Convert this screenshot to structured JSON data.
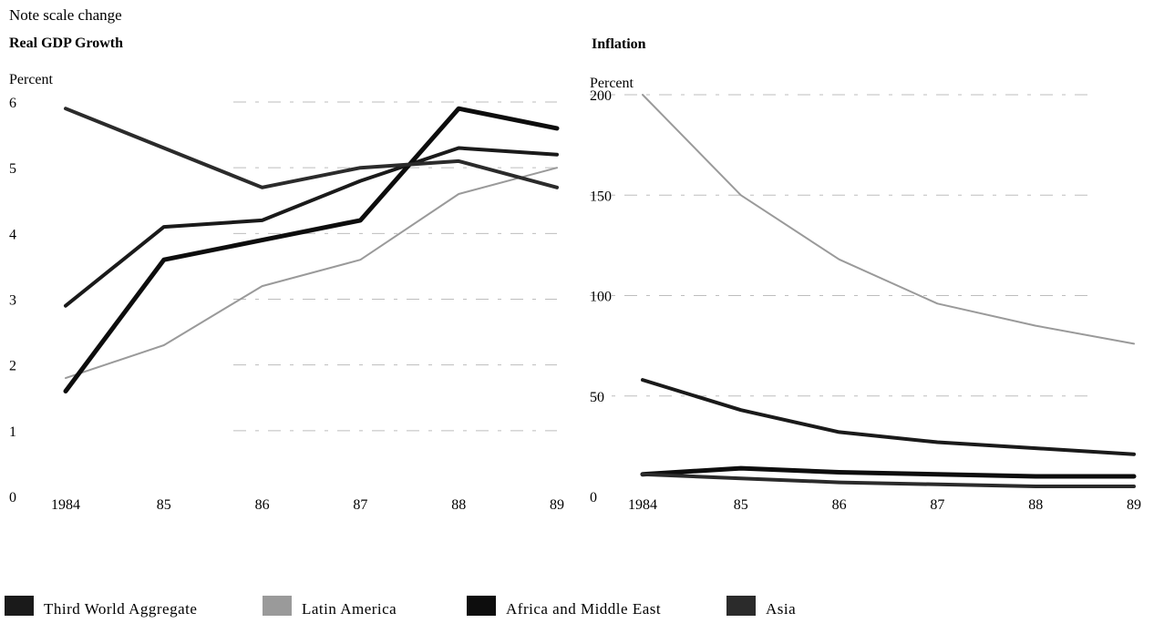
{
  "note": "Note scale change",
  "colors": {
    "Third World Aggregate": "#1a1a1a",
    "Latin America": "#9a9a9a",
    "Africa and Middle East": "#0d0d0d",
    "Asia": "#2b2b2b"
  },
  "legend": [
    "Third World Aggregate",
    "Latin America",
    "Africa and Middle East",
    "Asia"
  ],
  "chart_data": [
    {
      "type": "line",
      "title": "Real GDP Growth",
      "ylabel": "Percent",
      "categories": [
        "1984",
        "85",
        "86",
        "87",
        "88",
        "89"
      ],
      "ylim": [
        0,
        6
      ],
      "yticks": [
        "0",
        "1",
        "2",
        "3",
        "4",
        "5",
        "6"
      ],
      "series": [
        {
          "name": "Third World Aggregate",
          "values": [
            2.9,
            4.1,
            4.2,
            4.8,
            5.3,
            5.2
          ]
        },
        {
          "name": "Latin America",
          "values": [
            1.8,
            2.3,
            3.2,
            3.6,
            4.6,
            5.0
          ]
        },
        {
          "name": "Africa and Middle East",
          "values": [
            1.6,
            3.6,
            3.9,
            4.2,
            5.9,
            5.6
          ]
        },
        {
          "name": "Asia",
          "values": [
            5.9,
            5.3,
            4.7,
            5.0,
            5.1,
            4.7
          ]
        }
      ]
    },
    {
      "type": "line",
      "title": "Inflation",
      "ylabel": "Percent",
      "categories": [
        "1984",
        "85",
        "86",
        "87",
        "88",
        "89"
      ],
      "ylim": [
        0,
        200
      ],
      "yticks": [
        "0",
        "50",
        "100",
        "150",
        "200"
      ],
      "series": [
        {
          "name": "Third World Aggregate",
          "values": [
            58,
            43,
            32,
            27,
            24,
            21
          ]
        },
        {
          "name": "Latin America",
          "values": [
            200,
            150,
            118,
            96,
            85,
            76
          ]
        },
        {
          "name": "Africa and Middle East",
          "values": [
            11,
            14,
            12,
            11,
            10,
            10
          ]
        },
        {
          "name": "Asia",
          "values": [
            11,
            9,
            7,
            6,
            5,
            5
          ]
        }
      ]
    }
  ]
}
